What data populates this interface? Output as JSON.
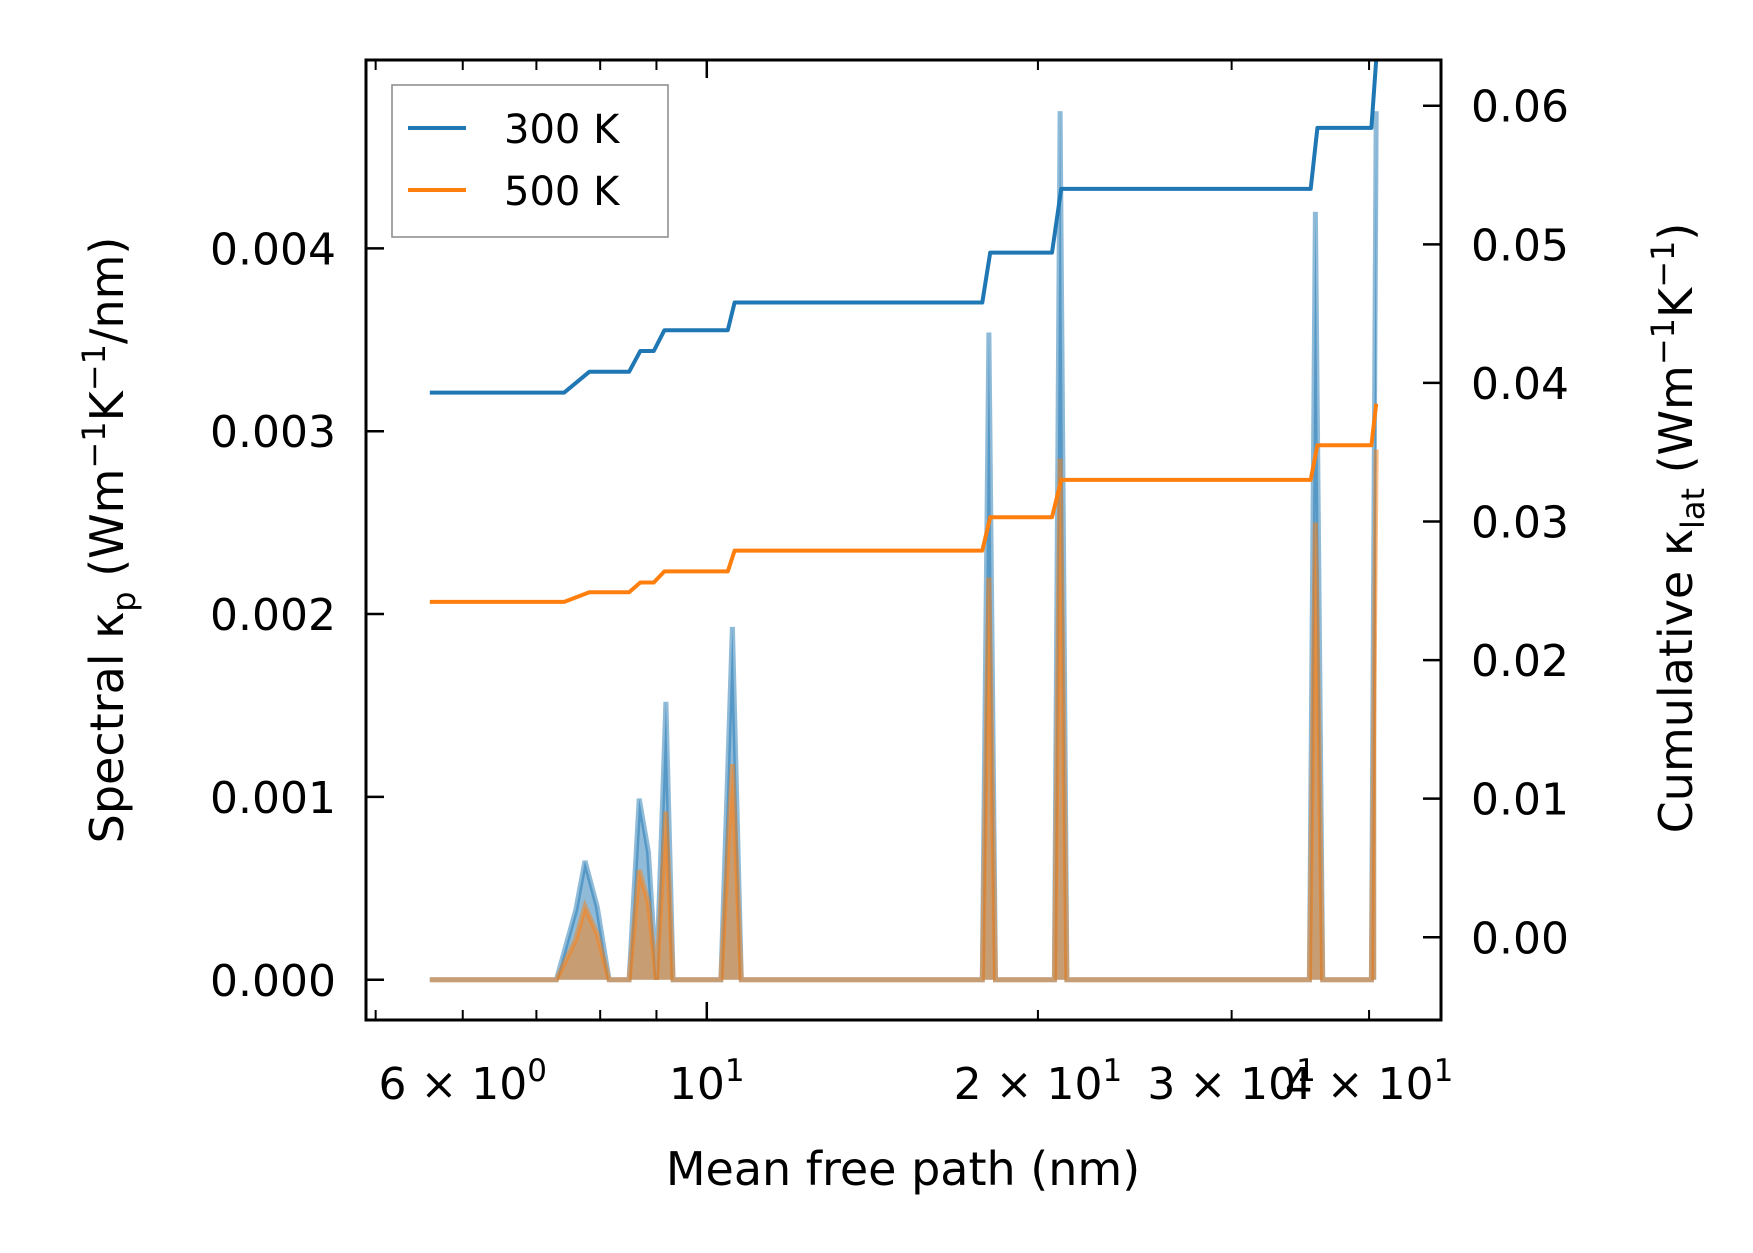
{
  "chart_data": {
    "type": "line",
    "xlabel": "Mean free path (nm)",
    "ylabel_left": {
      "main": "Spectral κ",
      "sub": "p",
      "unit_a": " (Wm",
      "sup1": "−1",
      "unit_b": "K",
      "sup2": "−1",
      "unit_c": "/nm)"
    },
    "ylabel_right": {
      "main": "Cumulative κ",
      "sub": "lat",
      "unit_a": " (Wm",
      "sup1": "−1",
      "unit_b": "K",
      "sup2": "−1",
      "unit_c": ")"
    },
    "x_scale": "log",
    "xlim": [
      4.9,
      46.5
    ],
    "ylim_left": [
      -0.00022,
      0.00503
    ],
    "ylim_right": [
      -0.00597,
      0.0633
    ],
    "x_major_ticks": [
      {
        "value": 10,
        "base": "10",
        "exp": "1"
      }
    ],
    "x_minor_ticks": [
      {
        "value": 5,
        "label": ""
      },
      {
        "value": 6,
        "label": "6 × 10",
        "exp": "0"
      },
      {
        "value": 7,
        "label": ""
      },
      {
        "value": 8,
        "label": ""
      },
      {
        "value": 9,
        "label": ""
      },
      {
        "value": 20,
        "label": "2 × 10",
        "exp": "1"
      },
      {
        "value": 30,
        "label": "3 × 10",
        "exp": "1"
      },
      {
        "value": 40,
        "label": "4 × 10",
        "exp": "1"
      }
    ],
    "y_ticks_left": [
      "0.000",
      "0.001",
      "0.002",
      "0.003",
      "0.004"
    ],
    "y_tick_values_left": [
      0,
      0.001,
      0.002,
      0.003,
      0.004
    ],
    "y_ticks_right": [
      "0.00",
      "0.01",
      "0.02",
      "0.03",
      "0.04",
      "0.05",
      "0.06"
    ],
    "y_tick_values_right": [
      0,
      0.01,
      0.02,
      0.03,
      0.04,
      0.05,
      0.06
    ],
    "legend": {
      "position": "upper-left",
      "entries": [
        "300 K",
        "500 K"
      ]
    },
    "colors": {
      "300K": "#1f77b4",
      "500K": "#ff7f0e",
      "fill300": "#1f77b4",
      "fill500": "#ff7f0e"
    },
    "spectral_series": [
      {
        "name": "300 K",
        "points": [
          [
            5.6,
            0
          ],
          [
            7.3,
            0
          ],
          [
            7.6,
            0.00038
          ],
          [
            7.75,
            0.00065
          ],
          [
            7.95,
            0.0004
          ],
          [
            8.15,
            0
          ],
          [
            8.5,
            0
          ],
          [
            8.68,
            0.00099
          ],
          [
            8.85,
            0.0007
          ],
          [
            9.0,
            0
          ],
          [
            9.0,
            0
          ],
          [
            9.18,
            0.00152
          ],
          [
            9.32,
            0
          ],
          [
            10.3,
            0
          ],
          [
            10.55,
            0.00193
          ],
          [
            10.75,
            0
          ],
          [
            17.8,
            0
          ],
          [
            18.05,
            0.00354
          ],
          [
            18.3,
            0
          ],
          [
            20.7,
            0
          ],
          [
            20.95,
            0.00475
          ],
          [
            21.25,
            0
          ],
          [
            35.3,
            0
          ],
          [
            35.75,
            0.0042
          ],
          [
            36.3,
            0
          ],
          [
            40.2,
            0
          ],
          [
            40.6,
            0.00475
          ]
        ]
      },
      {
        "name": "500 K",
        "points": [
          [
            5.6,
            0
          ],
          [
            7.3,
            0
          ],
          [
            7.6,
            0.00022
          ],
          [
            7.75,
            0.0004
          ],
          [
            7.95,
            0.00025
          ],
          [
            8.15,
            0
          ],
          [
            8.5,
            0
          ],
          [
            8.68,
            0.0006
          ],
          [
            8.85,
            0.00042
          ],
          [
            9.0,
            0
          ],
          [
            9.0,
            0
          ],
          [
            9.18,
            0.00092
          ],
          [
            9.32,
            0
          ],
          [
            10.3,
            0
          ],
          [
            10.55,
            0.00118
          ],
          [
            10.75,
            0
          ],
          [
            17.8,
            0
          ],
          [
            18.05,
            0.0022
          ],
          [
            18.3,
            0
          ],
          [
            20.7,
            0
          ],
          [
            20.95,
            0.00285
          ],
          [
            21.25,
            0
          ],
          [
            35.3,
            0
          ],
          [
            35.75,
            0.0025
          ],
          [
            36.3,
            0
          ],
          [
            40.2,
            0
          ],
          [
            40.6,
            0.0029
          ]
        ]
      }
    ],
    "cumulative_series": [
      {
        "name": "300 K",
        "points": [
          [
            5.6,
            0.0393
          ],
          [
            7.42,
            0.0393
          ],
          [
            7.82,
            0.0408
          ],
          [
            8.5,
            0.0408
          ],
          [
            8.7,
            0.0423
          ],
          [
            8.95,
            0.0423
          ],
          [
            9.15,
            0.0438
          ],
          [
            10.45,
            0.0438
          ],
          [
            10.6,
            0.0458
          ],
          [
            17.8,
            0.0458
          ],
          [
            18.1,
            0.0494
          ],
          [
            20.6,
            0.0494
          ],
          [
            21.0,
            0.054
          ],
          [
            35.4,
            0.054
          ],
          [
            35.9,
            0.0584
          ],
          [
            40.2,
            0.0584
          ],
          [
            40.6,
            0.0633
          ]
        ]
      },
      {
        "name": "500 K",
        "points": [
          [
            5.6,
            0.0242
          ],
          [
            7.42,
            0.0242
          ],
          [
            7.82,
            0.0249
          ],
          [
            8.5,
            0.0249
          ],
          [
            8.7,
            0.0256
          ],
          [
            8.95,
            0.0256
          ],
          [
            9.15,
            0.0264
          ],
          [
            10.45,
            0.0264
          ],
          [
            10.6,
            0.0279
          ],
          [
            17.8,
            0.0279
          ],
          [
            18.1,
            0.0303
          ],
          [
            20.6,
            0.0303
          ],
          [
            21.0,
            0.033
          ],
          [
            35.4,
            0.033
          ],
          [
            35.9,
            0.0355
          ],
          [
            40.2,
            0.0355
          ],
          [
            40.6,
            0.0385
          ]
        ]
      }
    ]
  }
}
